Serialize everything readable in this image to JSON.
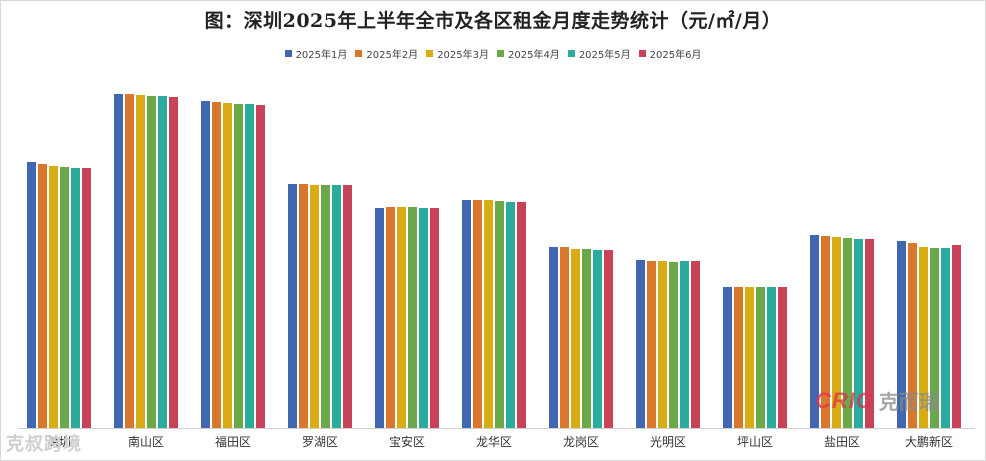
{
  "chart_data": {
    "type": "bar",
    "title": "图：深圳2025年上半年全市及各区租金月度走势统计（元/㎡/月）",
    "xlabel": "",
    "ylabel": "",
    "grid": false,
    "legend_position": "top",
    "categories": [
      "深圳",
      "南山区",
      "福田区",
      "罗湖区",
      "宝安区",
      "龙华区",
      "龙岗区",
      "光明区",
      "坪山区",
      "盐田区",
      "大鹏新区"
    ],
    "series": [
      {
        "name": "2025年1月",
        "color": "#4167b0",
        "values": [
          266,
          334,
          327,
          244,
          220,
          228,
          181,
          168,
          141,
          193,
          187
        ]
      },
      {
        "name": "2025年2月",
        "color": "#d9782d",
        "values": [
          264,
          334,
          326,
          244,
          221,
          228,
          181,
          167,
          141,
          192,
          185
        ]
      },
      {
        "name": "2025年3月",
        "color": "#d8ac14",
        "values": [
          262,
          333,
          325,
          243,
          221,
          228,
          179,
          167,
          141,
          191,
          181
        ]
      },
      {
        "name": "2025年4月",
        "color": "#6aa84a",
        "values": [
          261,
          332,
          324,
          243,
          221,
          227,
          179,
          166,
          141,
          190,
          180
        ]
      },
      {
        "name": "2025年5月",
        "color": "#2aab9b",
        "values": [
          260,
          332,
          324,
          243,
          220,
          226,
          178,
          167,
          141,
          189,
          180
        ]
      },
      {
        "name": "2025年6月",
        "color": "#c94358",
        "values": [
          260,
          331,
          323,
          243,
          220,
          226,
          178,
          167,
          141,
          189,
          183
        ]
      }
    ],
    "ylim": [
      0,
      368
    ],
    "note": "No y-axis shown; values are relative pixel heights above baseline"
  },
  "watermarks": {
    "left": "克叔跨境",
    "right_logo": "CRIC",
    "right_text": "克而瑞"
  }
}
